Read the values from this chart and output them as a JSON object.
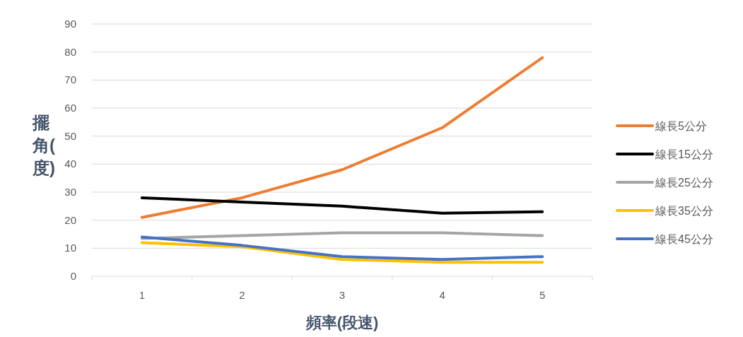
{
  "chart_data": {
    "type": "line",
    "xlabel": "頻率(段速)",
    "ylabel": "擺角(度)",
    "categories": [
      "1",
      "2",
      "3",
      "4",
      "5"
    ],
    "ylim": [
      0,
      90
    ],
    "yticks": [
      0,
      10,
      20,
      30,
      40,
      50,
      60,
      70,
      80,
      90
    ],
    "grid": "y",
    "legend": "right",
    "series": [
      {
        "name": "線長5公分",
        "color": "#ed7d31",
        "values": [
          21,
          28,
          38,
          53,
          78
        ]
      },
      {
        "name": "線長15公分",
        "color": "#000000",
        "values": [
          28,
          26.5,
          25,
          22.5,
          23
        ]
      },
      {
        "name": "線長25公分",
        "color": "#a5a5a5",
        "values": [
          13.5,
          14.5,
          15.5,
          15.5,
          14.5
        ]
      },
      {
        "name": "線長35公分",
        "color": "#ffc000",
        "values": [
          12,
          10.5,
          6,
          5,
          5
        ]
      },
      {
        "name": "線長45公分",
        "color": "#4472c4",
        "values": [
          14,
          11,
          7,
          6,
          7
        ]
      }
    ]
  }
}
